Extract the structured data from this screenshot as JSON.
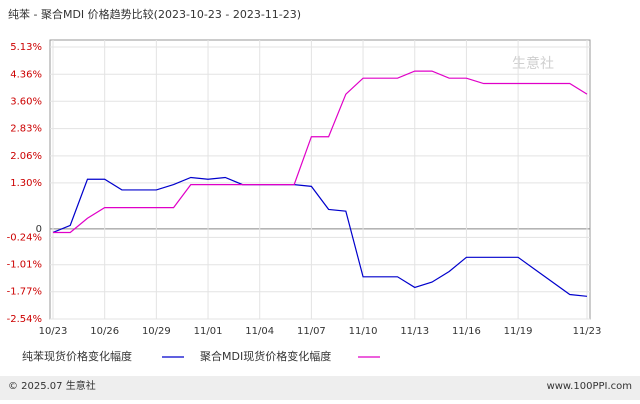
{
  "chart_data": {
    "type": "line",
    "title": "纯苯 - 聚合MDI 价格趋势比较(2023-10-23 - 2023-11-23)",
    "categories": [
      "10/23",
      null,
      null,
      "10/26",
      null,
      null,
      "10/29",
      null,
      null,
      "11/01",
      null,
      null,
      "11/04",
      null,
      null,
      "11/07",
      null,
      null,
      "11/10",
      null,
      null,
      "11/13",
      null,
      null,
      "11/16",
      null,
      null,
      "11/19",
      null,
      null,
      null,
      "11/23"
    ],
    "series": [
      {
        "name": "纯苯现货价格变化幅度",
        "color": "#0000cc",
        "values": [
          -0.1,
          0.1,
          1.4,
          1.4,
          1.1,
          1.1,
          1.1,
          1.25,
          1.45,
          1.4,
          1.45,
          1.25,
          1.25,
          1.25,
          1.25,
          1.2,
          0.55,
          0.5,
          -1.35,
          -1.35,
          -1.35,
          -1.65,
          -1.5,
          -1.2,
          -0.8,
          -0.8,
          -0.8,
          -0.8,
          -1.15,
          -1.5,
          -1.85,
          -1.9
        ]
      },
      {
        "name": "聚合MDI现货价格变化幅度",
        "color": "#e000c8",
        "values": [
          -0.1,
          -0.1,
          0.3,
          0.6,
          0.6,
          0.6,
          0.6,
          0.6,
          1.25,
          1.25,
          1.25,
          1.25,
          1.25,
          1.25,
          1.25,
          2.6,
          2.6,
          3.8,
          4.25,
          4.25,
          4.25,
          4.45,
          4.45,
          4.25,
          4.25,
          4.1,
          4.1,
          4.1,
          4.1,
          4.1,
          4.1,
          3.8
        ]
      }
    ],
    "ylim": [
      -2.54,
      5.13
    ],
    "yticks": [
      {
        "value": 5.13,
        "label": "5.13%"
      },
      {
        "value": 4.36,
        "label": "4.36%"
      },
      {
        "value": 3.6,
        "label": "3.60%"
      },
      {
        "value": 2.83,
        "label": "2.83%"
      },
      {
        "value": 2.06,
        "label": "2.06%"
      },
      {
        "value": 1.3,
        "label": "1.30%"
      },
      0,
      {
        "value": -0.24,
        "label": "-0.24%"
      },
      {
        "value": -1.01,
        "label": "-1.01%"
      },
      {
        "value": -1.77,
        "label": "-1.77%"
      },
      {
        "value": -2.54,
        "label": "-2.54%"
      }
    ],
    "grid": true,
    "watermark": "生意社",
    "footer_left": "© 2025.07 生意社",
    "footer_right": "www.100PPI.com"
  }
}
